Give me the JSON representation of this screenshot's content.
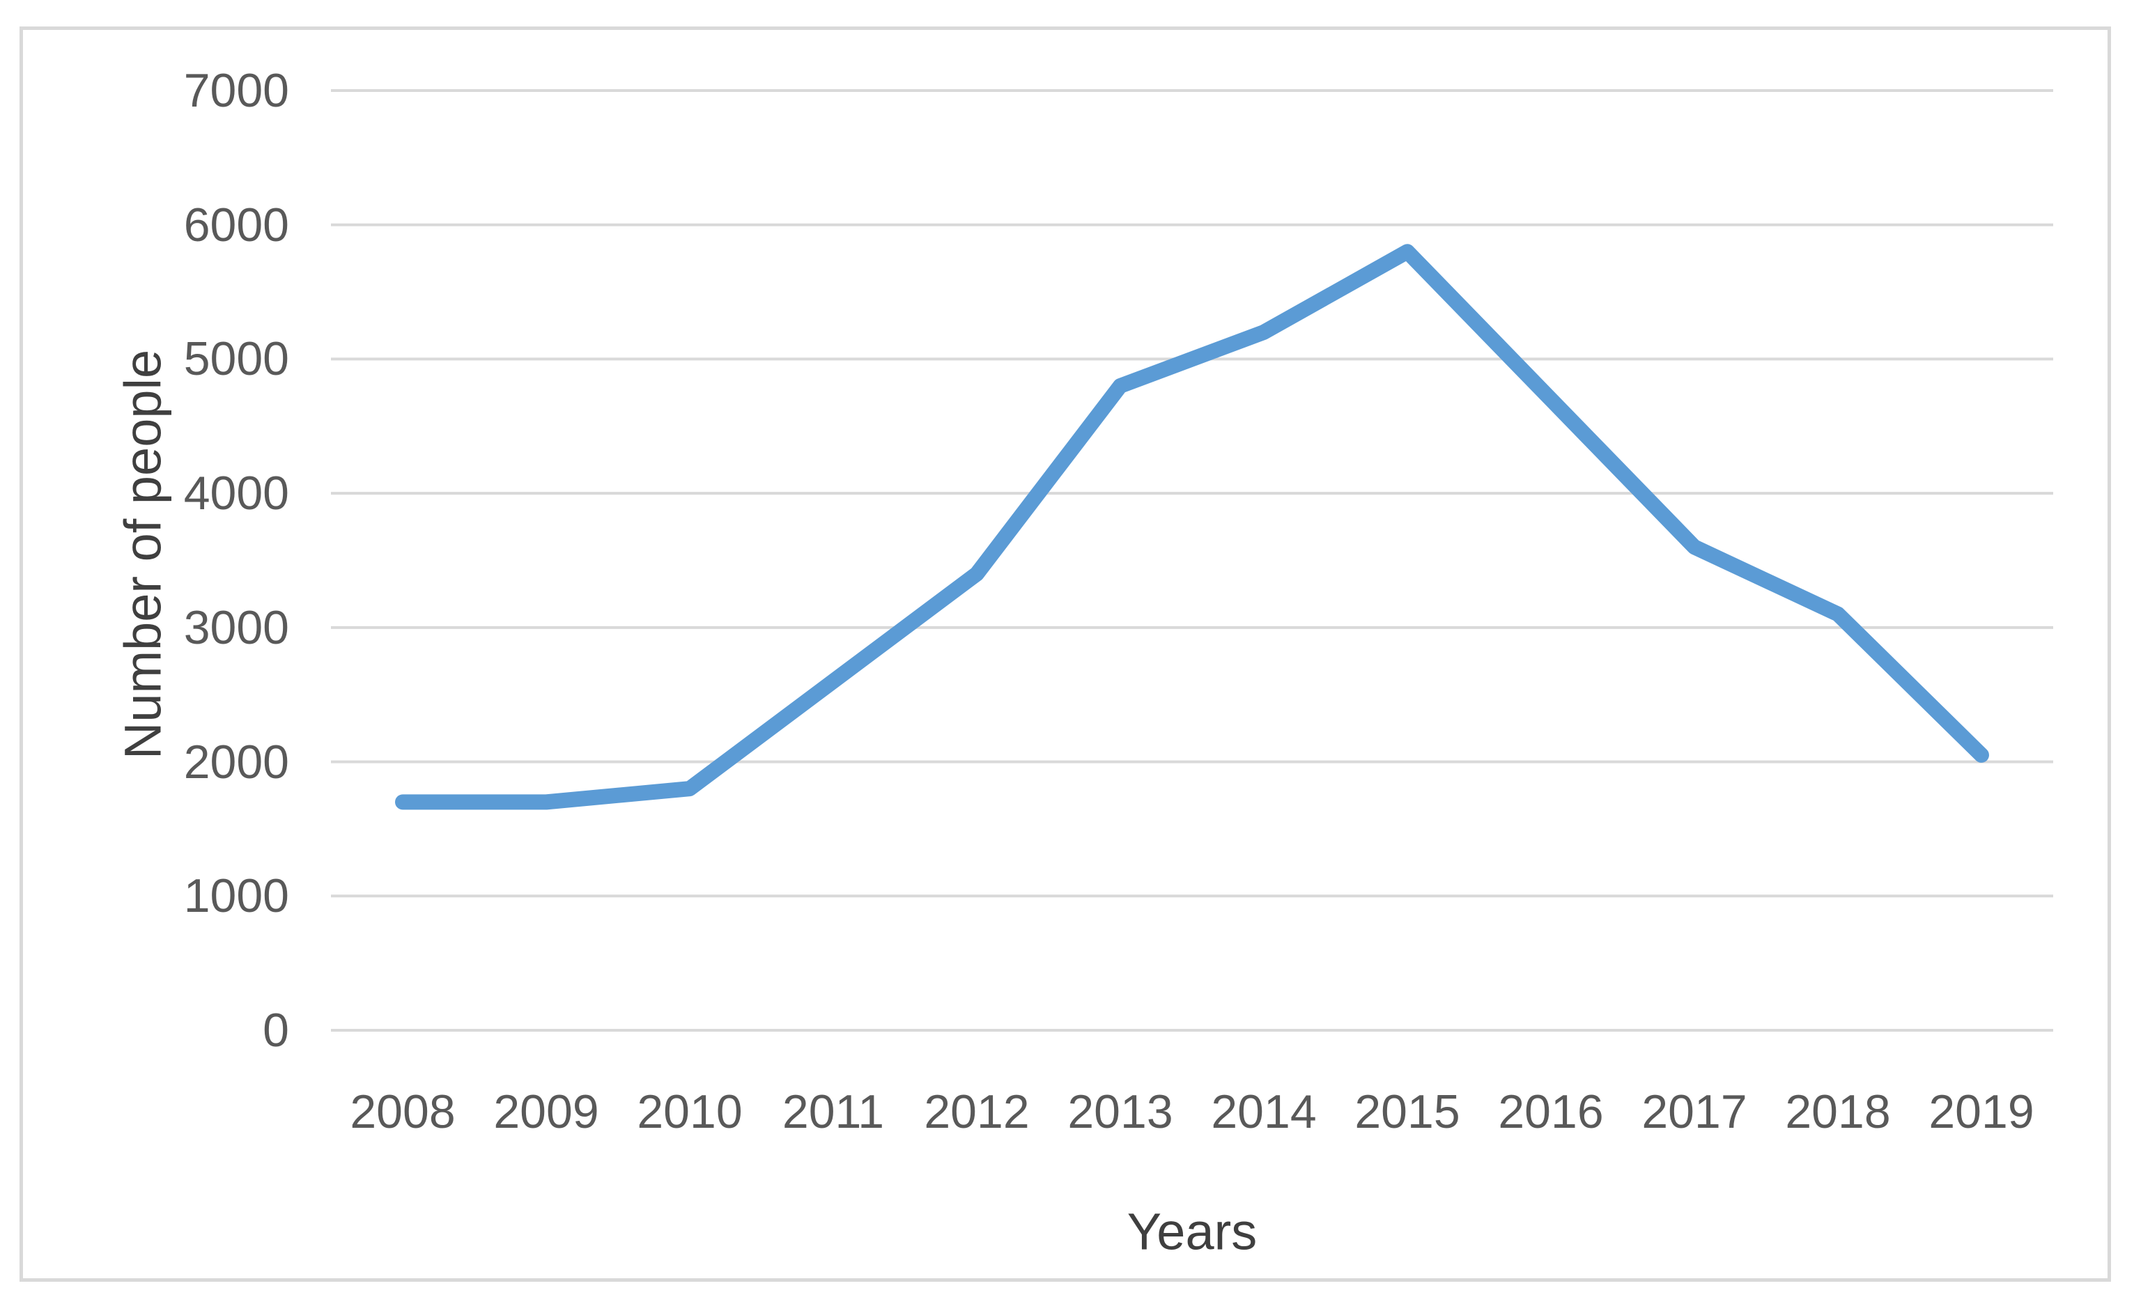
{
  "chart_data": {
    "type": "line",
    "title": "",
    "xlabel": "Years",
    "ylabel": "Number of people",
    "categories": [
      "2008",
      "2009",
      "2010",
      "2011",
      "2012",
      "2013",
      "2014",
      "2015",
      "2016",
      "2017",
      "2018",
      "2019"
    ],
    "series": [
      {
        "name": "Number of people",
        "values": [
          1700,
          1700,
          1800,
          2600,
          3400,
          4800,
          5200,
          5800,
          4700,
          3600,
          3100,
          2050
        ]
      }
    ],
    "ylim": [
      0,
      7000
    ],
    "yticks": [
      0,
      1000,
      2000,
      3000,
      4000,
      5000,
      6000,
      7000
    ],
    "grid": true,
    "legend_position": "none",
    "line_color": "#5B9BD5",
    "gridline_color": "#D9D9D9",
    "border_color": "#D9D9D9",
    "tick_label_color": "#595959",
    "axis_title_color": "#3F3F3F",
    "background_color": "#FFFFFF"
  }
}
